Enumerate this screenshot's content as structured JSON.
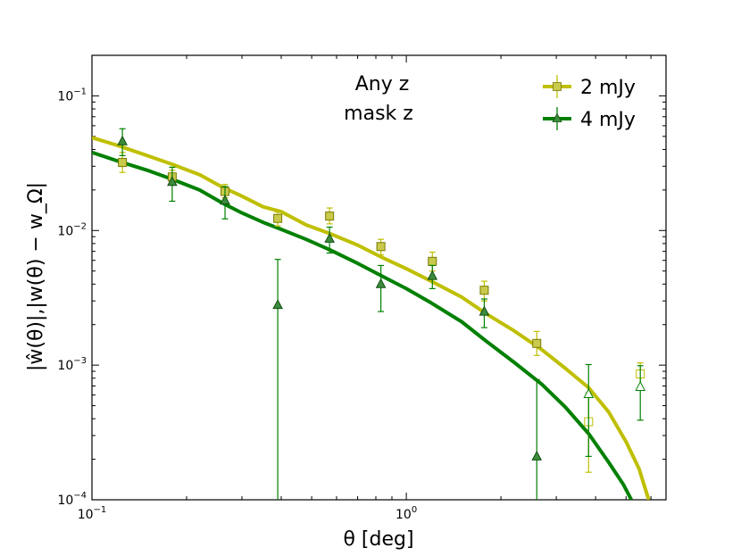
{
  "chart_data": {
    "type": "line",
    "xscale": "log",
    "yscale": "log",
    "xlim": [
      0.1,
      6.7
    ],
    "ylim": [
      0.0001,
      0.2
    ],
    "xlabel": "θ [deg]",
    "ylabel": "|ŵ(θ)|,|w(θ) − w_Ω|",
    "x_ticks": [
      {
        "value": 0.1,
        "base": "10",
        "exp": "−1"
      },
      {
        "value": 1,
        "base": "10",
        "exp": "0"
      }
    ],
    "y_ticks": [
      {
        "value": 0.1,
        "base": "10",
        "exp": "−1"
      },
      {
        "value": 0.01,
        "base": "10",
        "exp": "−2"
      },
      {
        "value": 0.001,
        "base": "10",
        "exp": "−3"
      },
      {
        "value": 0.0001,
        "base": "10",
        "exp": "−4"
      }
    ],
    "annotation": [
      "Any z",
      "mask z"
    ],
    "legend_position": "top-right",
    "grid": false,
    "series": [
      {
        "name": "2 mJy",
        "color": "#bfbf00",
        "marker": "square",
        "line": {
          "x": [
            0.1,
            0.12,
            0.15,
            0.18,
            0.22,
            0.26,
            0.3,
            0.35,
            0.4,
            0.48,
            0.57,
            0.7,
            0.85,
            1.0,
            1.2,
            1.5,
            1.8,
            2.2,
            2.7,
            3.2,
            3.8,
            4.4,
            5.0,
            5.5,
            5.9
          ],
          "y": [
            0.049,
            0.043,
            0.036,
            0.031,
            0.026,
            0.021,
            0.018,
            0.015,
            0.0138,
            0.011,
            0.0095,
            0.0078,
            0.0062,
            0.0052,
            0.0042,
            0.0032,
            0.0024,
            0.0018,
            0.0013,
            0.00095,
            0.00068,
            0.00045,
            0.00027,
            0.00017,
            0.0001
          ]
        },
        "points": [
          {
            "x": 0.125,
            "y": 0.032,
            "err_low": 0.027,
            "err_high": 0.038,
            "filled": true
          },
          {
            "x": 0.18,
            "y": 0.025,
            "err_low": 0.022,
            "err_high": 0.028,
            "filled": true
          },
          {
            "x": 0.265,
            "y": 0.0195,
            "err_low": 0.0175,
            "err_high": 0.022,
            "filled": true
          },
          {
            "x": 0.39,
            "y": 0.0123,
            "err_low": 0.0108,
            "err_high": 0.0137,
            "filled": true
          },
          {
            "x": 0.57,
            "y": 0.0128,
            "err_low": 0.0112,
            "err_high": 0.0147,
            "filled": true
          },
          {
            "x": 0.83,
            "y": 0.0076,
            "err_low": 0.0066,
            "err_high": 0.0086,
            "filled": true
          },
          {
            "x": 1.21,
            "y": 0.0059,
            "err_low": 0.005,
            "err_high": 0.0069,
            "filled": true
          },
          {
            "x": 1.77,
            "y": 0.0036,
            "err_low": 0.003,
            "err_high": 0.0042,
            "filled": true
          },
          {
            "x": 2.6,
            "y": 0.00145,
            "err_low": 0.00118,
            "err_high": 0.00178,
            "filled": true
          },
          {
            "x": 3.8,
            "y": 0.00038,
            "err_low": 0.00016,
            "err_high": 0.00062,
            "filled": false
          },
          {
            "x": 5.55,
            "y": 0.00086,
            "err_low": 0.00068,
            "err_high": 0.00104,
            "filled": false
          }
        ]
      },
      {
        "name": "4 mJy",
        "color": "#008000",
        "marker": "triangle",
        "line": {
          "x": [
            0.1,
            0.12,
            0.15,
            0.18,
            0.22,
            0.26,
            0.3,
            0.35,
            0.4,
            0.48,
            0.57,
            0.7,
            0.85,
            1.0,
            1.2,
            1.5,
            1.8,
            2.2,
            2.7,
            3.2,
            3.8,
            4.4,
            4.9,
            5.2
          ],
          "y": [
            0.038,
            0.033,
            0.028,
            0.024,
            0.02,
            0.016,
            0.0135,
            0.0115,
            0.0102,
            0.0086,
            0.0072,
            0.0057,
            0.0045,
            0.0037,
            0.0029,
            0.0021,
            0.0015,
            0.00105,
            0.00072,
            0.00049,
            0.00031,
            0.00019,
            0.00013,
            0.0001
          ]
        },
        "points": [
          {
            "x": 0.125,
            "y": 0.046,
            "err_low": 0.036,
            "err_high": 0.057,
            "filled": true
          },
          {
            "x": 0.18,
            "y": 0.023,
            "err_low": 0.0165,
            "err_high": 0.0295,
            "filled": true
          },
          {
            "x": 0.265,
            "y": 0.0167,
            "err_low": 0.0122,
            "err_high": 0.0212,
            "filled": true
          },
          {
            "x": 0.39,
            "y": 0.0028,
            "err_low": 0.0001,
            "err_high": 0.0061,
            "filled": true
          },
          {
            "x": 0.57,
            "y": 0.0087,
            "err_low": 0.0068,
            "err_high": 0.0106,
            "filled": true
          },
          {
            "x": 0.83,
            "y": 0.004,
            "err_low": 0.0025,
            "err_high": 0.0055,
            "filled": true
          },
          {
            "x": 1.21,
            "y": 0.0046,
            "err_low": 0.0037,
            "err_high": 0.0055,
            "filled": true
          },
          {
            "x": 1.77,
            "y": 0.0025,
            "err_low": 0.0019,
            "err_high": 0.0031,
            "filled": true
          },
          {
            "x": 2.6,
            "y": 0.00021,
            "err_low": 0.0001,
            "err_high": 0.00078,
            "filled": true
          },
          {
            "x": 3.8,
            "y": 0.00061,
            "err_low": 0.00021,
            "err_high": 0.00101,
            "filled": false
          },
          {
            "x": 5.55,
            "y": 0.00069,
            "err_low": 0.00039,
            "err_high": 0.00099,
            "filled": false
          }
        ]
      }
    ]
  }
}
